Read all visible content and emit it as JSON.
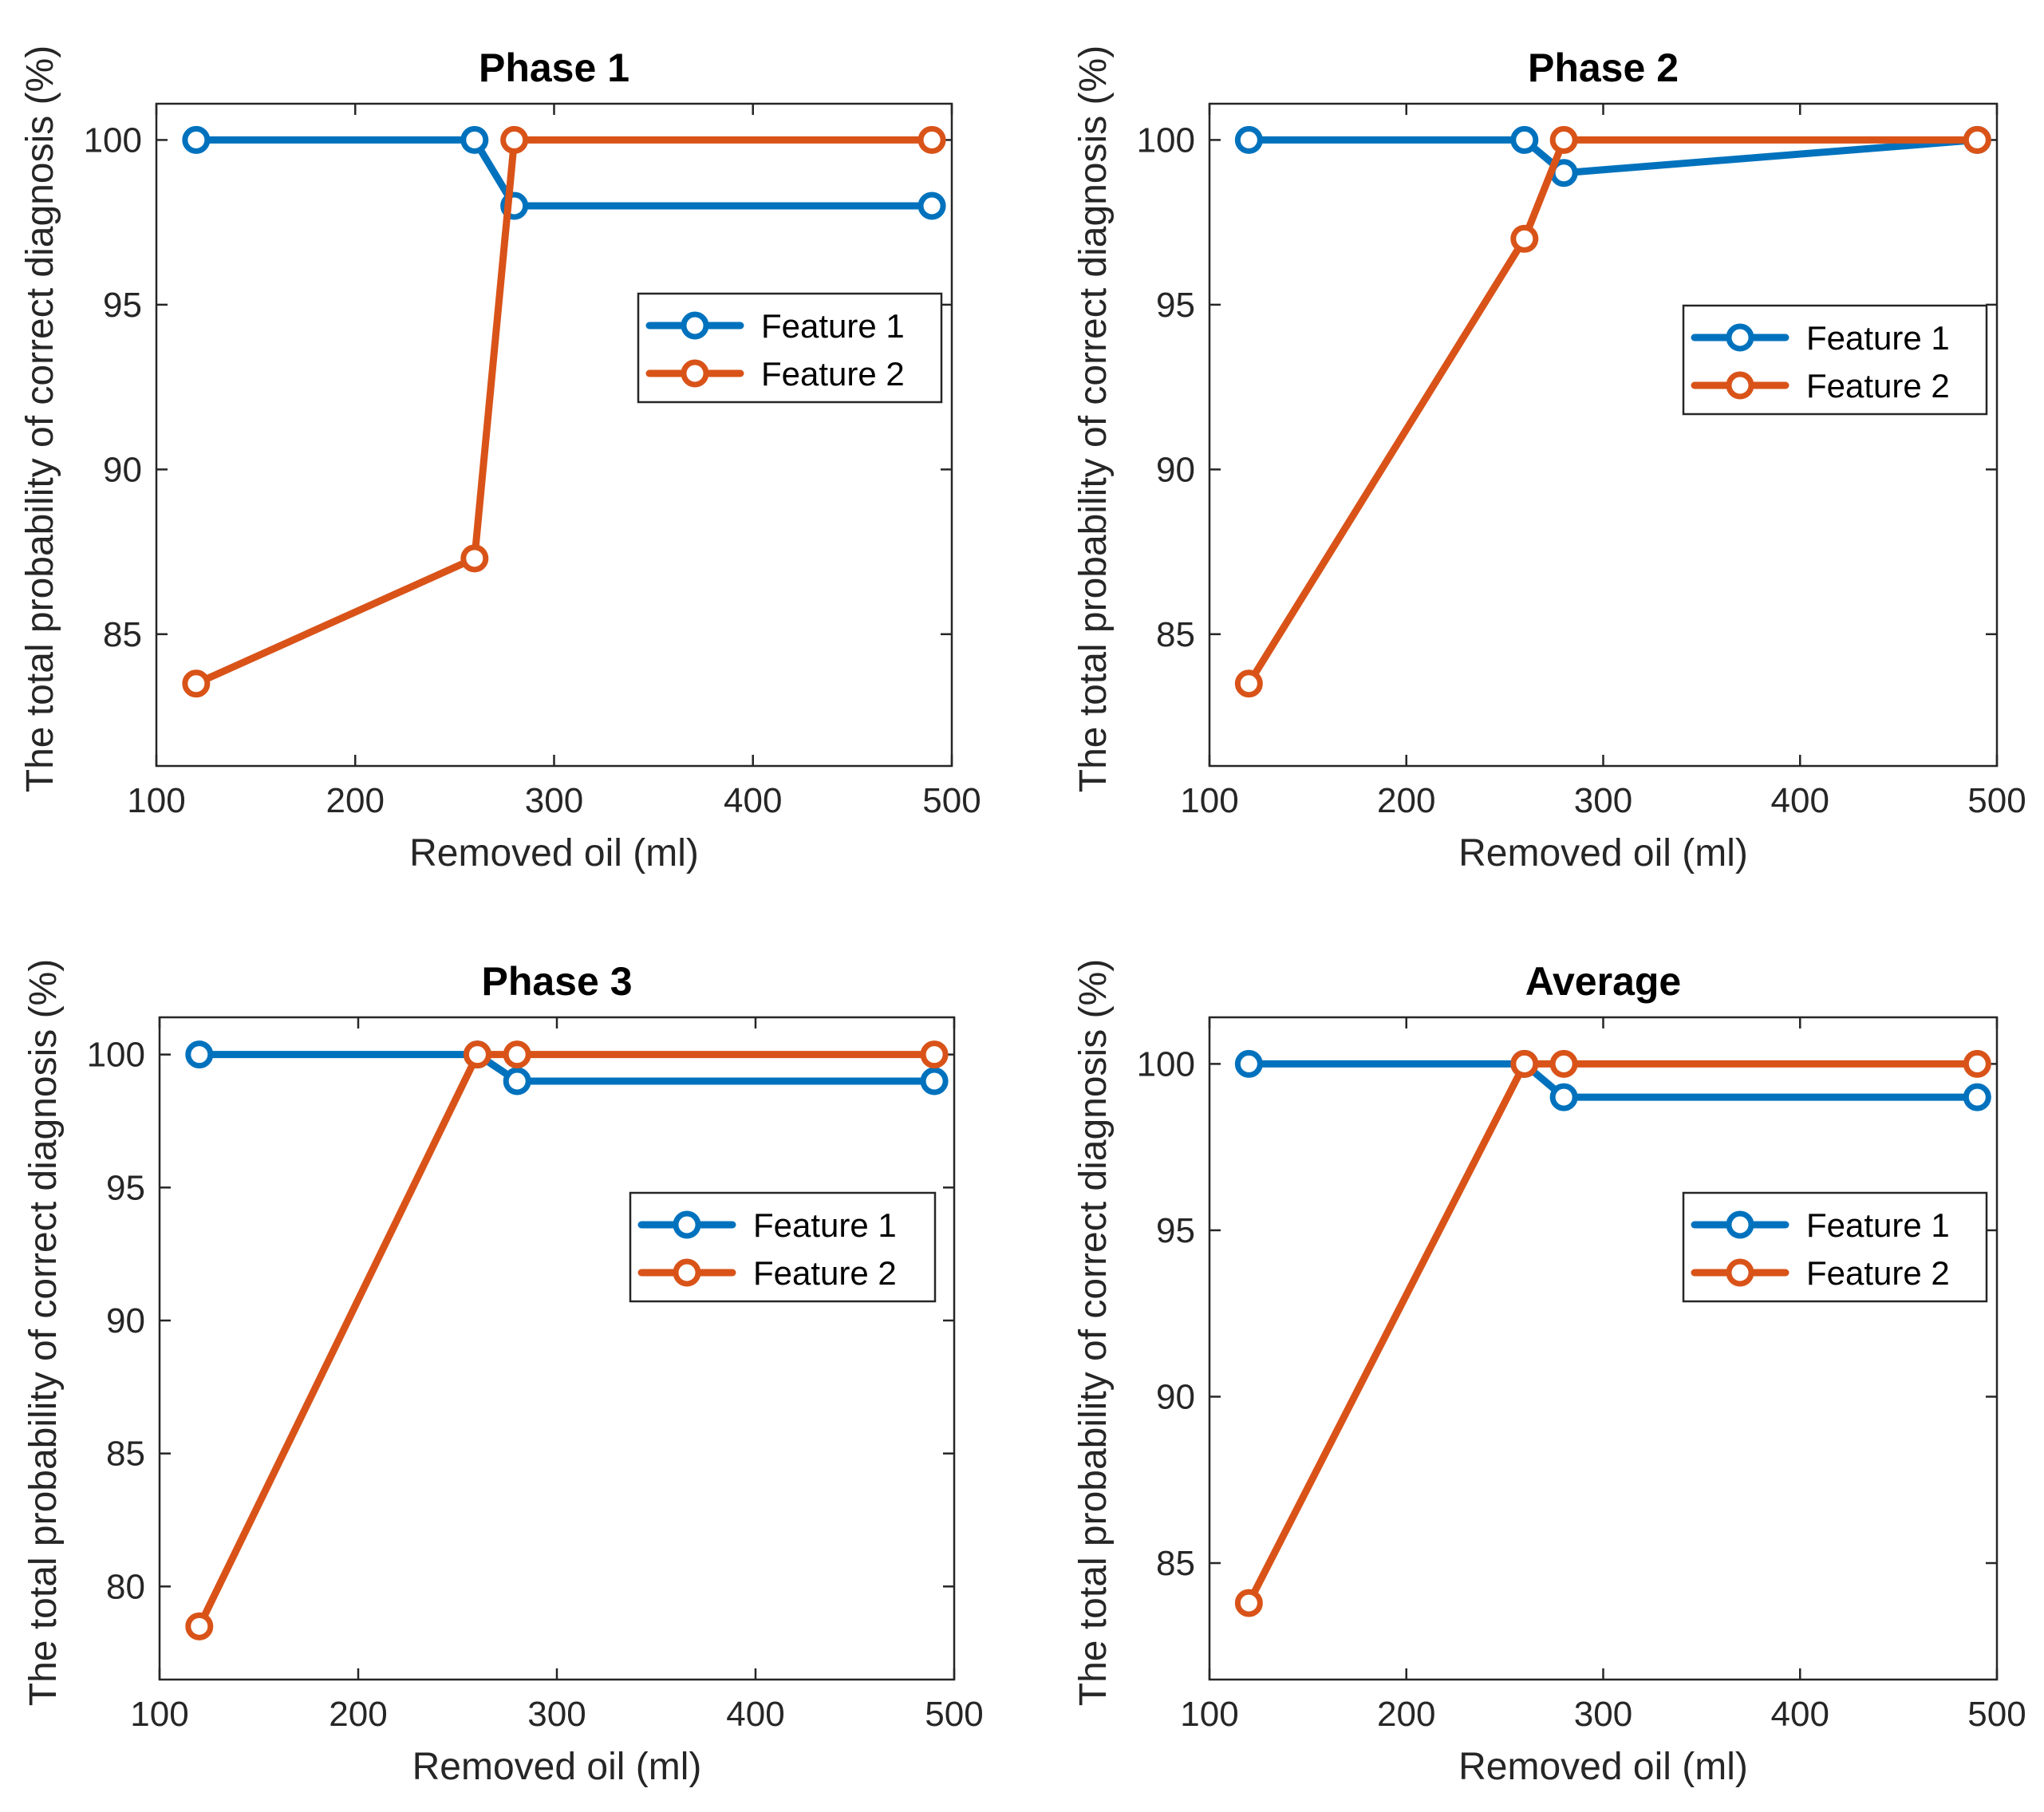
{
  "chart_data": [
    {
      "type": "line",
      "title": "Phase 1",
      "xlabel": "Removed oil (ml)",
      "ylabel": "The total probability of correct diagnosis (%)",
      "xlim": [
        100,
        500
      ],
      "ylim": [
        81,
        101.1
      ],
      "xticks": [
        100,
        200,
        300,
        400,
        500
      ],
      "yticks": [
        85,
        90,
        95,
        100
      ],
      "grid": false,
      "legend_position": "upper-right-middle",
      "series": [
        {
          "name": "Feature 1",
          "x": [
            120,
            260,
            280,
            490
          ],
          "y": [
            100,
            100,
            98,
            98
          ]
        },
        {
          "name": "Feature 2",
          "x": [
            120,
            260,
            280,
            490
          ],
          "y": [
            83.5,
            87.3,
            100,
            100
          ]
        }
      ]
    },
    {
      "type": "line",
      "title": "Phase 2",
      "xlabel": "Removed oil (ml)",
      "ylabel": "The total probability of correct diagnosis (%)",
      "xlim": [
        100,
        500
      ],
      "ylim": [
        81,
        101.1
      ],
      "xticks": [
        100,
        200,
        300,
        400,
        500
      ],
      "yticks": [
        85,
        90,
        95,
        100
      ],
      "grid": false,
      "legend_position": "upper-right-middle",
      "series": [
        {
          "name": "Feature 1",
          "x": [
            120,
            260,
            280,
            490
          ],
          "y": [
            100,
            100,
            99,
            100
          ]
        },
        {
          "name": "Feature 2",
          "x": [
            120,
            260,
            280,
            490
          ],
          "y": [
            83.5,
            97,
            100,
            100
          ]
        }
      ]
    },
    {
      "type": "line",
      "title": "Phase 3",
      "xlabel": "Removed oil (ml)",
      "ylabel": "The total probability of correct diagnosis (%)",
      "xlim": [
        100,
        500
      ],
      "ylim": [
        76.5,
        101.4
      ],
      "xticks": [
        100,
        200,
        300,
        400,
        500
      ],
      "yticks": [
        80,
        85,
        90,
        95,
        100
      ],
      "grid": false,
      "legend_position": "upper-right-middle",
      "series": [
        {
          "name": "Feature 1",
          "x": [
            120,
            260,
            280,
            490
          ],
          "y": [
            100,
            100,
            99,
            99
          ]
        },
        {
          "name": "Feature 2",
          "x": [
            120,
            260,
            280,
            490
          ],
          "y": [
            78.5,
            100,
            100,
            100
          ]
        }
      ]
    },
    {
      "type": "line",
      "title": "Average",
      "xlabel": "Removed oil (ml)",
      "ylabel": "The total probability of correct diagnosis (%)",
      "xlim": [
        100,
        500
      ],
      "ylim": [
        81.5,
        101.4
      ],
      "xticks": [
        100,
        200,
        300,
        400,
        500
      ],
      "yticks": [
        85,
        90,
        95,
        100
      ],
      "grid": false,
      "legend_position": "upper-right-middle",
      "series": [
        {
          "name": "Feature 1",
          "x": [
            120,
            260,
            280,
            490
          ],
          "y": [
            100,
            100,
            99,
            99
          ]
        },
        {
          "name": "Feature 2",
          "x": [
            120,
            260,
            280,
            490
          ],
          "y": [
            83.8,
            100,
            100,
            100
          ]
        }
      ]
    }
  ],
  "colors": {
    "feature1": "#0072BD",
    "feature2": "#D95319",
    "axis": "#262626"
  }
}
